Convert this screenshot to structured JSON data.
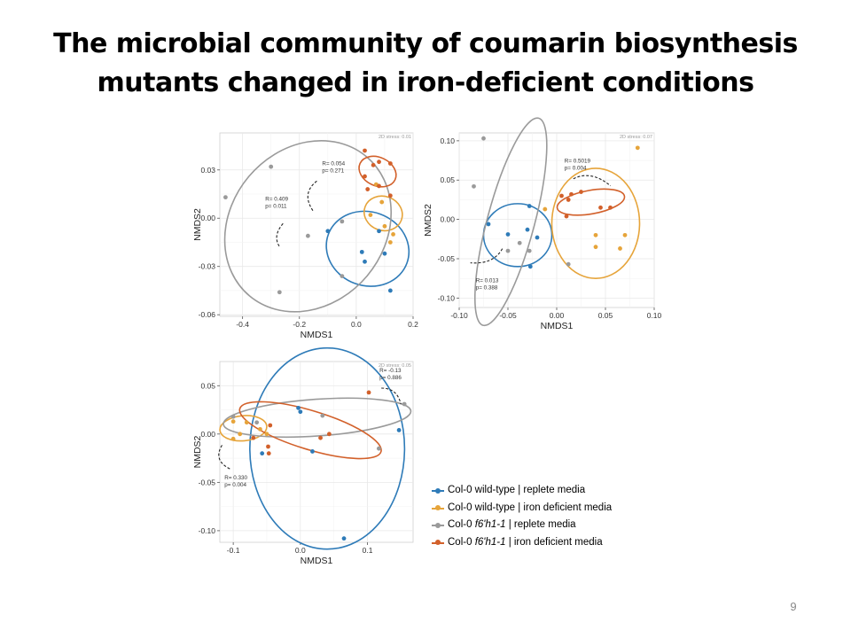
{
  "slide": {
    "title_lines": [
      "The microbial community of coumarin biosynthesis",
      "mutants changed  in iron-deficient conditions"
    ],
    "page_number": "9"
  },
  "legend": [
    {
      "prefix": "Col-0 wild-type | replete media",
      "italic": "",
      "suffix": "",
      "color": "#2e7bb8"
    },
    {
      "prefix": "Col-0 wild-type | iron deficient media",
      "italic": "",
      "suffix": "",
      "color": "#e6a43a"
    },
    {
      "prefix": "Col-0 ",
      "italic": "f6'h1-1",
      "suffix": " | replete media",
      "color": "#9a9a9a"
    },
    {
      "prefix": "Col-0 ",
      "italic": "f6'h1-1",
      "suffix": " | iron deficient media",
      "color": "#d2602a"
    }
  ],
  "chart_data": [
    {
      "type": "scatter",
      "stress_label": "2D stress: 0.01",
      "xlabel": "NMDS1",
      "ylabel": "NMDS2",
      "xlim": [
        -0.48,
        0.2
      ],
      "ylim": [
        -0.061,
        0.053
      ],
      "xticks": [
        -0.4,
        -0.2,
        0.0,
        0.2
      ],
      "xticklabels": [
        "-0.4",
        "-0.2",
        "0.0",
        "0.2"
      ],
      "yticks": [
        -0.06,
        -0.03,
        0.0,
        0.03
      ],
      "yticklabels": [
        "-0.06",
        "-0.03",
        "0.00",
        "0.03"
      ],
      "grid": true,
      "annotations": [
        {
          "lines": [
            "R= 0.054",
            "p= 0.271"
          ],
          "x": -0.12,
          "y": 0.033
        },
        {
          "lines": [
            "R= 0.409",
            "p= 0.011"
          ],
          "x": -0.32,
          "y": 0.011
        }
      ],
      "series": [
        {
          "name": "Col-0 wild-type | replete media",
          "color": "#2e7bb8",
          "points": [
            [
              -0.1,
              -0.008
            ],
            [
              0.03,
              -0.027
            ],
            [
              0.02,
              -0.021
            ],
            [
              0.08,
              -0.008
            ],
            [
              0.1,
              -0.022
            ],
            [
              0.12,
              -0.045
            ]
          ],
          "ellipse": {
            "cx": 0.04,
            "cy": -0.019,
            "rx": 0.13,
            "ry": 0.026,
            "angle": -70
          }
        },
        {
          "name": "Col-0 wild-type | iron deficient media",
          "color": "#e6a43a",
          "points": [
            [
              0.07,
              0.021
            ],
            [
              0.09,
              0.01
            ],
            [
              0.1,
              -0.005
            ],
            [
              0.12,
              -0.015
            ],
            [
              0.13,
              -0.01
            ],
            [
              0.05,
              0.002
            ]
          ],
          "ellipse": {
            "cx": 0.095,
            "cy": 0.003,
            "rx": 0.06,
            "ry": 0.012,
            "angle": -70
          }
        },
        {
          "name": "Col-0 f6'h1-1 | replete media",
          "color": "#9a9a9a",
          "points": [
            [
              -0.3,
              0.032
            ],
            [
              -0.46,
              0.013
            ],
            [
              -0.17,
              -0.011
            ],
            [
              -0.05,
              -0.002
            ],
            [
              -0.27,
              -0.046
            ],
            [
              -0.05,
              -0.036
            ]
          ],
          "ellipse": {
            "cx": -0.17,
            "cy": -0.005,
            "rx": 0.32,
            "ry": 0.048,
            "angle": -50
          }
        },
        {
          "name": "Col-0 f6'h1-1 | iron deficient media",
          "color": "#d2602a",
          "points": [
            [
              0.03,
              0.042
            ],
            [
              0.08,
              0.035
            ],
            [
              0.12,
              0.034
            ],
            [
              0.06,
              0.033
            ],
            [
              0.03,
              0.026
            ],
            [
              0.04,
              0.018
            ],
            [
              0.08,
              0.02
            ],
            [
              0.12,
              0.014
            ]
          ],
          "ellipse": {
            "cx": 0.075,
            "cy": 0.029,
            "rx": 0.05,
            "ry": 0.012,
            "angle": -65
          }
        }
      ]
    },
    {
      "type": "scatter",
      "stress_label": "2D stress: 0.07",
      "xlabel": "NMDS1",
      "ylabel": "NMDS2",
      "xlim": [
        -0.1,
        0.1
      ],
      "ylim": [
        -0.112,
        0.11
      ],
      "xticks": [
        -0.1,
        -0.05,
        0.0,
        0.05,
        0.1
      ],
      "xticklabels": [
        "-0.10",
        "-0.05",
        "0.00",
        "0.05",
        "0.10"
      ],
      "yticks": [
        -0.1,
        -0.05,
        0.0,
        0.05,
        0.1
      ],
      "yticklabels": [
        "-0.10",
        "-0.05",
        "0.00",
        "0.05",
        "0.10"
      ],
      "grid": true,
      "annotations": [
        {
          "lines": [
            "R= 0.5019",
            "p= 0.004"
          ],
          "x": 0.008,
          "y": 0.072
        },
        {
          "lines": [
            "R= 0.013",
            "p= 0.388"
          ],
          "x": -0.083,
          "y": -0.08
        }
      ],
      "series": [
        {
          "name": "Col-0 wild-type | replete media",
          "color": "#2e7bb8",
          "points": [
            [
              -0.07,
              -0.006
            ],
            [
              -0.05,
              -0.019
            ],
            [
              -0.03,
              -0.013
            ],
            [
              -0.02,
              -0.023
            ],
            [
              -0.028,
              0.017
            ],
            [
              -0.027,
              -0.06
            ]
          ],
          "ellipse": {
            "cx": -0.04,
            "cy": -0.02,
            "rx": 0.035,
            "ry": 0.04,
            "angle": 0
          }
        },
        {
          "name": "Col-0 wild-type | iron deficient media",
          "color": "#e6a43a",
          "points": [
            [
              0.083,
              0.091
            ],
            [
              0.04,
              -0.02
            ],
            [
              0.07,
              -0.02
            ],
            [
              0.04,
              -0.035
            ],
            [
              0.065,
              -0.037
            ],
            [
              -0.012,
              0.013
            ]
          ],
          "ellipse": {
            "cx": 0.04,
            "cy": -0.005,
            "rx": 0.045,
            "ry": 0.07,
            "angle": 0
          }
        },
        {
          "name": "Col-0 f6'h1-1 | replete media",
          "color": "#9a9a9a",
          "points": [
            [
              -0.075,
              0.103
            ],
            [
              -0.085,
              0.042
            ],
            [
              -0.05,
              -0.04
            ],
            [
              -0.038,
              -0.03
            ],
            [
              -0.028,
              -0.04
            ],
            [
              0.012,
              -0.057
            ]
          ],
          "ellipse": {
            "cx": -0.047,
            "cy": -0.003,
            "rx": 0.11,
            "ry": 0.03,
            "angle": -75
          }
        },
        {
          "name": "Col-0 f6'h1-1 | iron deficient media",
          "color": "#d2602a",
          "points": [
            [
              0.005,
              0.03
            ],
            [
              0.015,
              0.032
            ],
            [
              0.025,
              0.035
            ],
            [
              0.045,
              0.015
            ],
            [
              0.055,
              0.015
            ],
            [
              0.01,
              0.004
            ],
            [
              0.012,
              0.025
            ]
          ],
          "ellipse": {
            "cx": 0.035,
            "cy": 0.022,
            "rx": 0.035,
            "ry": 0.015,
            "angle": -10
          }
        }
      ]
    },
    {
      "type": "scatter",
      "stress_label": "2D stress: 0.05",
      "xlabel": "NMDS1",
      "ylabel": "NMDS2",
      "xlim": [
        -0.12,
        0.168
      ],
      "ylim": [
        -0.112,
        0.075
      ],
      "xticks": [
        -0.1,
        0.0,
        0.1
      ],
      "xticklabels": [
        "-0.1",
        "0.0",
        "0.1"
      ],
      "yticks": [
        -0.1,
        -0.05,
        0.0,
        0.05
      ],
      "yticklabels": [
        "-0.10",
        "-0.05",
        "0.00",
        "0.05"
      ],
      "grid": true,
      "annotations": [
        {
          "lines": [
            "R= -0.13",
            "p= 0.886"
          ],
          "x": 0.118,
          "y": 0.064
        },
        {
          "lines": [
            "R= 0.330",
            "p= 0.004"
          ],
          "x": -0.113,
          "y": -0.047
        }
      ],
      "series": [
        {
          "name": "Col-0 wild-type | replete media",
          "color": "#2e7bb8",
          "points": [
            [
              -0.003,
              0.027
            ],
            [
              0.0,
              0.023
            ],
            [
              -0.057,
              -0.02
            ],
            [
              0.018,
              -0.018
            ],
            [
              0.147,
              0.004
            ],
            [
              0.065,
              -0.108
            ]
          ],
          "ellipse": {
            "cx": 0.04,
            "cy": -0.015,
            "rx": 0.15,
            "ry": 0.08,
            "angle": 90
          }
        },
        {
          "name": "Col-0 wild-type | iron deficient media",
          "color": "#e6a43a",
          "points": [
            [
              -0.1,
              0.013
            ],
            [
              -0.08,
              0.012
            ],
            [
              -0.06,
              0.005
            ],
            [
              -0.05,
              0.0
            ],
            [
              -0.09,
              0.0
            ],
            [
              -0.1,
              -0.005
            ]
          ],
          "ellipse": {
            "cx": -0.085,
            "cy": 0.006,
            "rx": 0.035,
            "ry": 0.013,
            "angle": -5
          }
        },
        {
          "name": "Col-0 f6'h1-1 | replete media",
          "color": "#9a9a9a",
          "points": [
            [
              -0.1,
              0.018
            ],
            [
              -0.065,
              0.012
            ],
            [
              0.033,
              0.019
            ],
            [
              0.117,
              -0.015
            ],
            [
              0.155,
              0.031
            ]
          ],
          "ellipse": {
            "cx": 0.025,
            "cy": 0.017,
            "rx": 0.14,
            "ry": 0.019,
            "angle": -4
          }
        },
        {
          "name": "Col-0 f6'h1-1 | iron deficient media",
          "color": "#d2602a",
          "points": [
            [
              -0.07,
              -0.004
            ],
            [
              -0.048,
              -0.013
            ],
            [
              -0.047,
              -0.02
            ],
            [
              -0.045,
              0.009
            ],
            [
              0.03,
              -0.004
            ],
            [
              0.043,
              0.0
            ],
            [
              0.102,
              0.043
            ]
          ],
          "ellipse": {
            "cx": 0.015,
            "cy": 0.004,
            "rx": 0.11,
            "ry": 0.02,
            "angle": 17
          }
        }
      ]
    }
  ]
}
